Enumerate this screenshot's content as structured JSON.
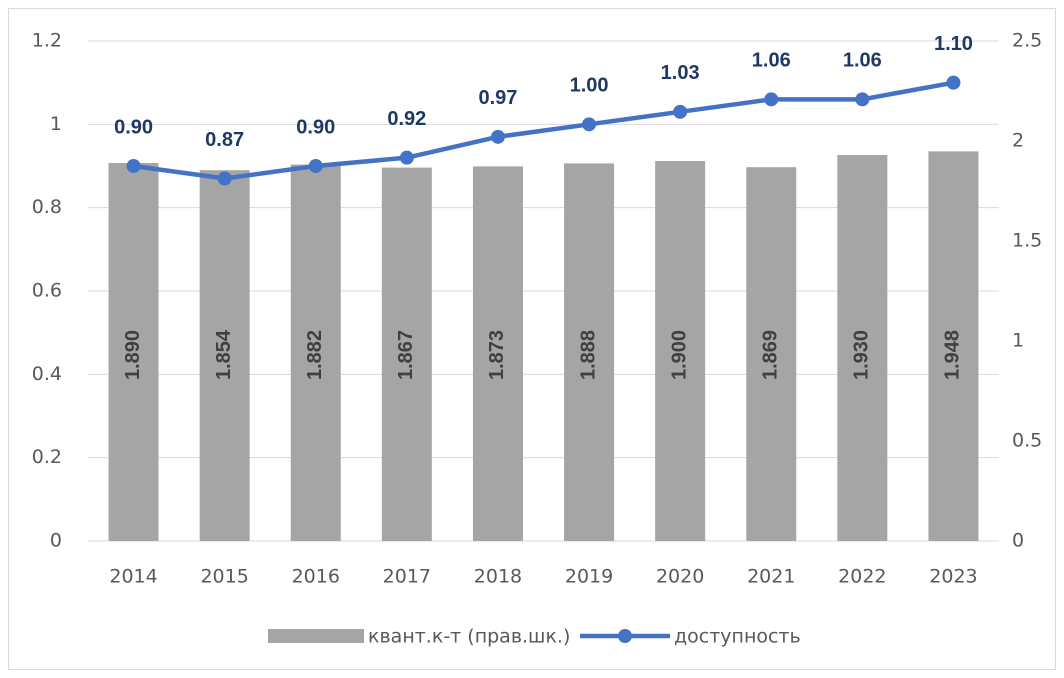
{
  "chart_data": {
    "type": "bar-line",
    "categories": [
      "2014",
      "2015",
      "2016",
      "2017",
      "2018",
      "2019",
      "2020",
      "2021",
      "2022",
      "2023"
    ],
    "series": [
      {
        "name": "квант.к-т (прав.шк.)",
        "type": "bar",
        "axis": "y2",
        "color": "#a5a5a5",
        "values": [
          1.89,
          1.854,
          1.882,
          1.867,
          1.873,
          1.888,
          1.9,
          1.869,
          1.93,
          1.948
        ],
        "value_labels": [
          "1.890",
          "1.854",
          "1.882",
          "1.867",
          "1.873",
          "1.888",
          "1.900",
          "1.869",
          "1.930",
          "1.948"
        ]
      },
      {
        "name": "доступность",
        "type": "line",
        "axis": "y",
        "color": "#4472c4",
        "values": [
          0.9,
          0.87,
          0.9,
          0.92,
          0.97,
          1.0,
          1.03,
          1.06,
          1.06,
          1.1
        ],
        "value_labels": [
          "0.90",
          "0.87",
          "0.90",
          "0.92",
          "0.97",
          "1.00",
          "1.03",
          "1.06",
          "1.06",
          "1.10"
        ]
      }
    ],
    "ylim": [
      0,
      1.2
    ],
    "yticks": [
      0,
      0.2,
      0.4,
      0.6,
      0.8,
      1,
      1.2
    ],
    "y2lim": [
      0,
      2.5
    ],
    "y2ticks": [
      0,
      0.5,
      1,
      1.5,
      2,
      2.5
    ],
    "grid": true,
    "legend": "bottom"
  }
}
